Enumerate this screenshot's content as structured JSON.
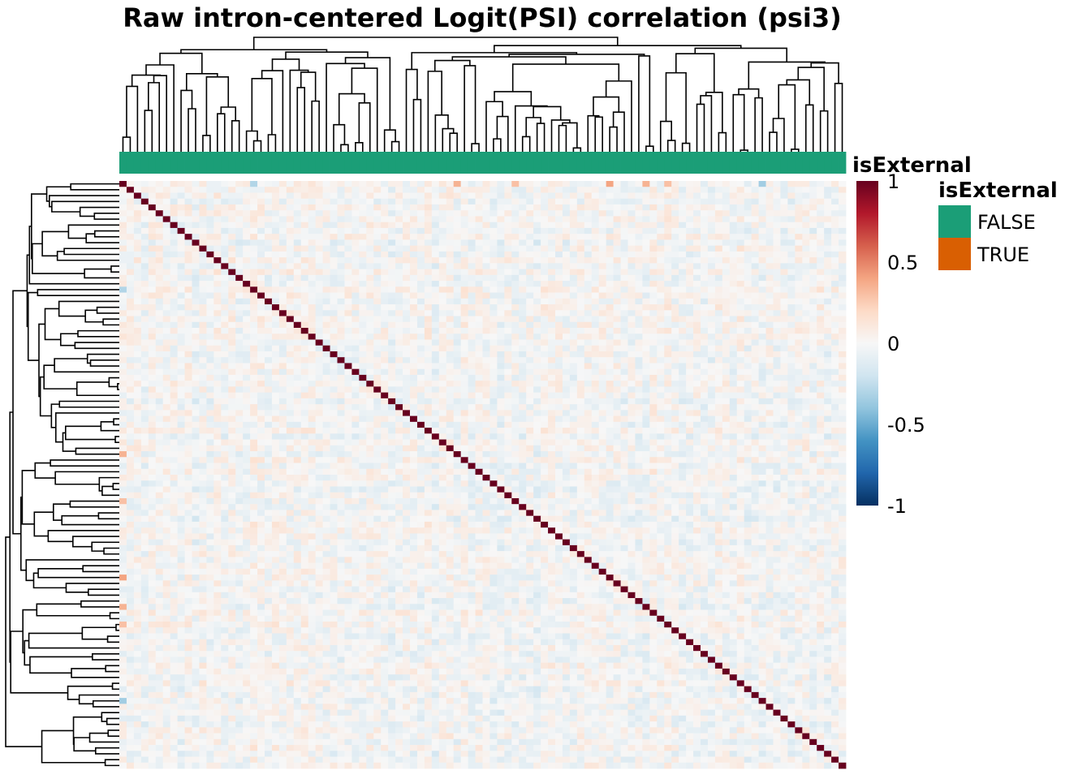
{
  "chart_data": {
    "type": "heatmap",
    "title": "Raw intron-centered Logit(PSI) correlation (psi3)",
    "matrix": {
      "n": 100,
      "diagonal_value": 1,
      "value_range": [
        -1,
        1
      ],
      "off_diagonal_typical_range": [
        -0.3,
        0.3
      ],
      "first_row_highlights": [
        {
          "column": 46,
          "value": 0.35
        },
        {
          "column": 54,
          "value": 0.3
        },
        {
          "column": 67,
          "value": 0.4
        },
        {
          "column": 72,
          "value": 0.35
        },
        {
          "column": 75,
          "value": 0.3
        },
        {
          "column": 88,
          "value": -0.35
        },
        {
          "column": 18,
          "value": -0.3
        }
      ]
    },
    "column_annotation": {
      "name": "isExternal",
      "values": "FALSE for all columns",
      "all_value": "FALSE"
    },
    "colorbar": {
      "ticks": [
        {
          "value": 1,
          "label": "1"
        },
        {
          "value": 0.5,
          "label": "0.5"
        },
        {
          "value": 0,
          "label": "0"
        },
        {
          "value": -0.5,
          "label": "-0.5"
        },
        {
          "value": -1,
          "label": "-1"
        }
      ],
      "colors_low_to_high": [
        "#053061",
        "#2166AC",
        "#4393C3",
        "#92C5DE",
        "#D1E5F0",
        "#F7F7F7",
        "#FDDBC7",
        "#F4A582",
        "#D6604D",
        "#B2182B",
        "#67001F"
      ]
    },
    "legend": {
      "title": "isExternal",
      "items": [
        {
          "label": "FALSE",
          "color": "#1B9E77"
        },
        {
          "label": "TRUE",
          "color": "#D95F02"
        }
      ]
    },
    "dendrograms": {
      "column": true,
      "row": true
    }
  }
}
